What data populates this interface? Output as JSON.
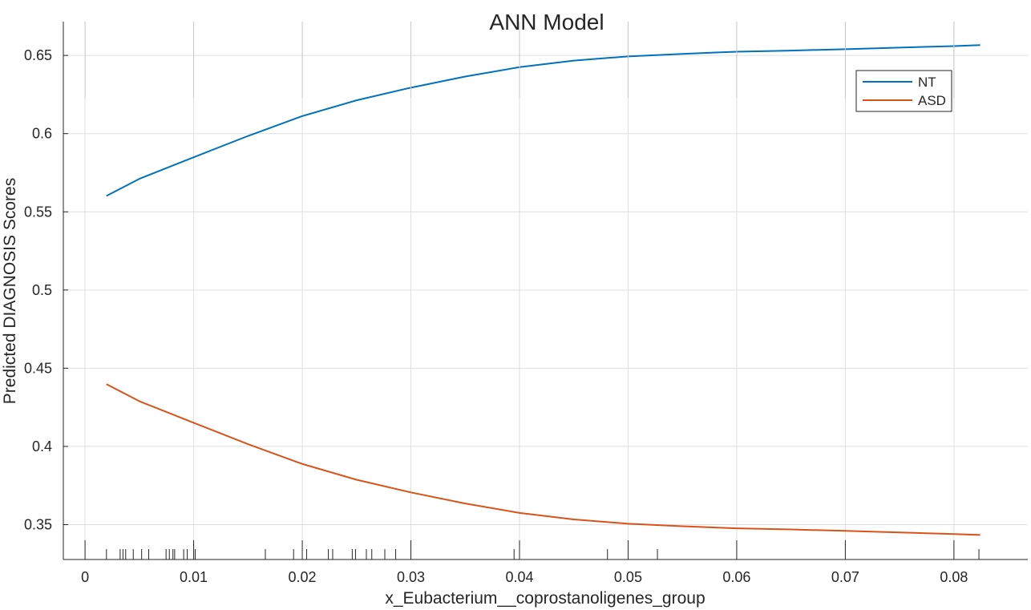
{
  "chart_data": {
    "type": "line",
    "title": "ANN Model",
    "xlabel": "x_Eubacterium__coprostanoligenes_group",
    "ylabel": "Predicted DIAGNOSIS Scores",
    "xlim": [
      -0.002,
      0.0868
    ],
    "ylim": [
      0.3277,
      0.6716
    ],
    "x_ticks": [
      0,
      0.01,
      0.02,
      0.03,
      0.04,
      0.05,
      0.06,
      0.07,
      0.08
    ],
    "x_tick_labels": [
      "0",
      "0.01",
      "0.02",
      "0.03",
      "0.04",
      "0.05",
      "0.06",
      "0.07",
      "0.08"
    ],
    "y_ticks": [
      0.35,
      0.4,
      0.45,
      0.5,
      0.55,
      0.6,
      0.65
    ],
    "y_tick_labels": [
      "0.35",
      "0.4",
      "0.45",
      "0.5",
      "0.55",
      "0.6",
      "0.65"
    ],
    "grid": true,
    "legend_position": "top-right",
    "x": [
      0.00197,
      0.005,
      0.01,
      0.015,
      0.02,
      0.025,
      0.03,
      0.035,
      0.04,
      0.045,
      0.05,
      0.055,
      0.06,
      0.065,
      0.07,
      0.075,
      0.08,
      0.08242
    ],
    "series": [
      {
        "name": "NT",
        "color": "#0072BD",
        "values": [
          0.5602,
          0.5711,
          0.5849,
          0.5985,
          0.6112,
          0.6213,
          0.6294,
          0.6365,
          0.6425,
          0.6467,
          0.6494,
          0.651,
          0.6524,
          0.6531,
          0.654,
          0.655,
          0.656,
          0.6566
        ]
      },
      {
        "name": "ASD",
        "color": "#D95319",
        "values": [
          0.4398,
          0.4289,
          0.4151,
          0.4015,
          0.3888,
          0.3787,
          0.3706,
          0.3635,
          0.3575,
          0.3533,
          0.3506,
          0.349,
          0.3476,
          0.3469,
          0.346,
          0.345,
          0.344,
          0.3434
        ]
      }
    ],
    "rug_x": [
      0.00197,
      0.00323,
      0.00349,
      0.00374,
      0.00444,
      0.00521,
      0.00586,
      0.00746,
      0.00776,
      0.00809,
      0.00825,
      0.00908,
      0.00941,
      0.01014,
      0.0166,
      0.0192,
      0.0204,
      0.0224,
      0.0228,
      0.0246,
      0.0249,
      0.0259,
      0.0264,
      0.0276,
      0.0286,
      0.0395,
      0.0481,
      0.0527,
      0.0823
    ]
  }
}
